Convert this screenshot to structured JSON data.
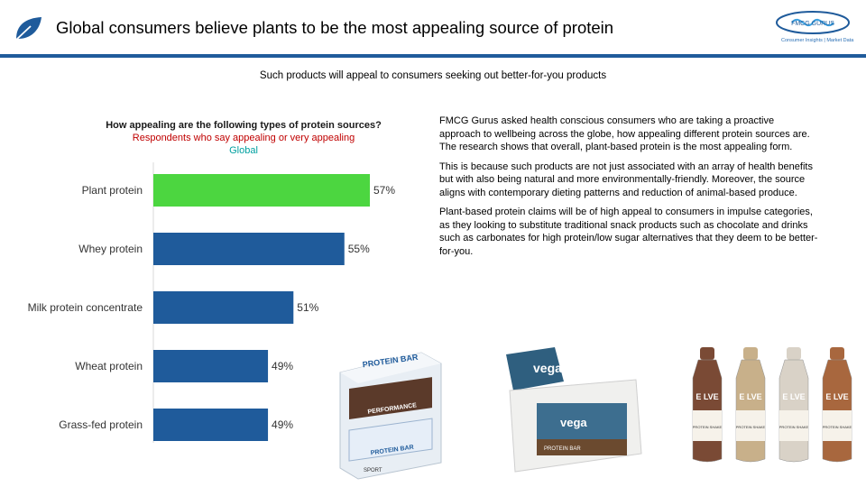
{
  "header": {
    "title": "Global consumers believe plants to be the most appealing source of protein",
    "logo_tagline": "Consumer Insights | Market Data"
  },
  "subtitle": "Such products will appeal to consumers seeking out better-for-you products",
  "chart_heading": {
    "question": "How appealing are the following types of protein sources?",
    "respondents": "Respondents who say appealing or very appealing",
    "region": "Global"
  },
  "chart_data": {
    "type": "bar",
    "orientation": "horizontal",
    "categories": [
      "Plant protein",
      "Whey protein",
      "Milk protein concentrate",
      "Wheat protein",
      "Grass-fed protein"
    ],
    "values": [
      57,
      55,
      51,
      49,
      49
    ],
    "value_labels": [
      "57%",
      "55%",
      "51%",
      "49%",
      "49%"
    ],
    "colors": [
      "#4cd640",
      "#1f5b9b",
      "#1f5b9b",
      "#1f5b9b",
      "#1f5b9b"
    ],
    "grid": false
  },
  "body_text": [
    "FMCG Gurus asked health conscious consumers who are taking a proactive approach to wellbeing across the globe, how appealing different protein sources are. The research shows that overall, plant-based protein is the most appealing form.",
    "This is because such products are not just associated with an array of health benefits but with also being natural and more environmentally-friendly. Moreover, the source aligns with contemporary dieting patterns and reduction of animal-based produce.",
    "Plant-based protein claims will be of high appeal to consumers in impulse categories, as they looking to substitute traditional snack products such as chocolate and drinks such as carbonates for high protein/low sugar alternatives that they deem to be better-for-you."
  ],
  "products": {
    "box1_label": "PROTEIN BAR",
    "box1_sub": "PERFORMANCE",
    "box1_brand": "SPORT",
    "box2_label": "vega",
    "box2_sub": "PROTEIN BAR",
    "shake_label": "E LVE",
    "shake_sub": "PROTEIN SHAKE"
  },
  "colors": {
    "accent": "#1f5b9b",
    "highlight": "#4cd640",
    "red": "#c00000",
    "teal": "#00a0a0"
  }
}
